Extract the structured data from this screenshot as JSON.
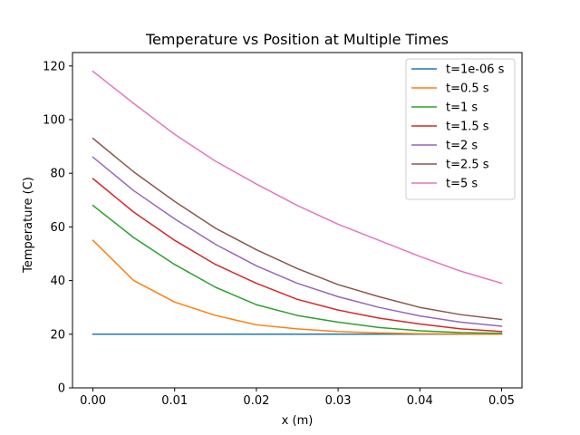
{
  "chart_data": {
    "type": "line",
    "title": "Temperature vs Position at Multiple Times",
    "xlabel": "x (m)",
    "ylabel": "Temperature (C)",
    "xlim": [
      -0.0025,
      0.0525
    ],
    "ylim": [
      0,
      125
    ],
    "xticks": [
      0.0,
      0.01,
      0.02,
      0.03,
      0.04,
      0.05
    ],
    "xtick_labels": [
      "0.00",
      "0.01",
      "0.02",
      "0.03",
      "0.04",
      "0.05"
    ],
    "yticks": [
      0,
      20,
      40,
      60,
      80,
      100,
      120
    ],
    "ytick_labels": [
      "0",
      "20",
      "40",
      "60",
      "80",
      "100",
      "120"
    ],
    "grid": false,
    "legend_position": "top-right",
    "x": [
      0.0,
      0.005,
      0.01,
      0.015,
      0.02,
      0.025,
      0.03,
      0.035,
      0.04,
      0.045,
      0.05
    ],
    "series": [
      {
        "name": "t=1e-06 s",
        "color": "#1f77b4",
        "values": [
          20,
          20,
          20,
          20,
          20,
          20,
          20,
          20,
          20,
          20,
          20
        ]
      },
      {
        "name": "t=0.5 s",
        "color": "#ff7f0e",
        "values": [
          55,
          40,
          32,
          27,
          23.5,
          22,
          21,
          20.5,
          20.2,
          20.1,
          20
        ]
      },
      {
        "name": "t=1 s",
        "color": "#2ca02c",
        "values": [
          68,
          56,
          46,
          37.5,
          31,
          27,
          24.5,
          22.5,
          21.3,
          20.6,
          20.3
        ]
      },
      {
        "name": "t=1.5 s",
        "color": "#d62728",
        "values": [
          78,
          65.5,
          55,
          46,
          39,
          33,
          29,
          26,
          23.8,
          22,
          21
        ]
      },
      {
        "name": "t=2 s",
        "color": "#9467bd",
        "values": [
          86,
          73.5,
          63,
          53.5,
          45.5,
          39,
          34,
          30,
          26.8,
          24.5,
          23
        ]
      },
      {
        "name": "t=2.5 s",
        "color": "#8c564b",
        "values": [
          93,
          80.5,
          69.5,
          59.5,
          51.5,
          44.5,
          38.5,
          34,
          30,
          27.3,
          25.5
        ]
      },
      {
        "name": "t=5 s",
        "color": "#e377c2",
        "values": [
          118,
          106,
          94.5,
          84.5,
          76,
          68,
          61,
          55,
          49,
          43.5,
          39
        ]
      }
    ]
  }
}
